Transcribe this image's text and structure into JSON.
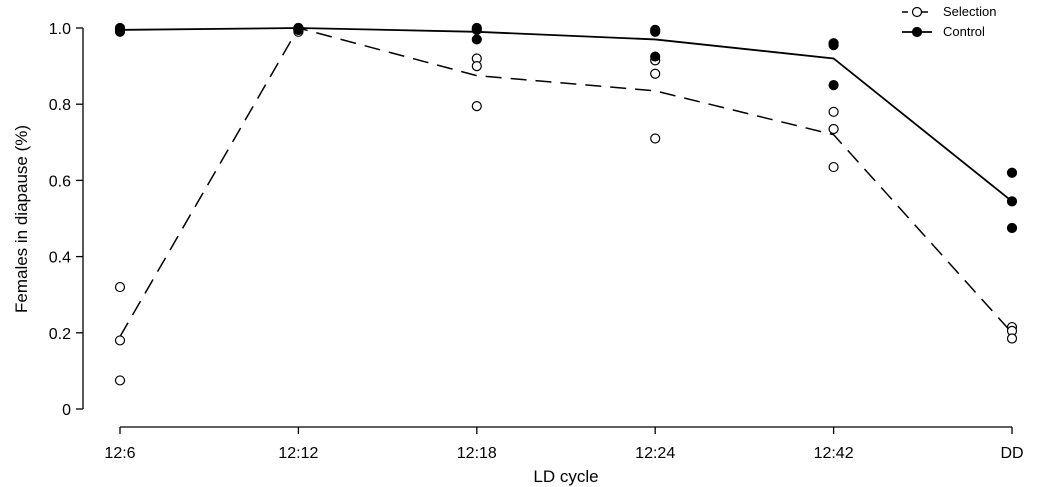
{
  "chart_data": {
    "type": "line",
    "title": "",
    "xlabel": "LD cycle",
    "ylabel": "Females in diapause (%)",
    "categories": [
      "12:6",
      "12:12",
      "12:18",
      "12:24",
      "12:42",
      "DD"
    ],
    "ylim": [
      0,
      1.0
    ],
    "yticks": [
      {
        "value": 0,
        "label": "0"
      },
      {
        "value": 0.2,
        "label": "0.2"
      },
      {
        "value": 0.4,
        "label": "0.4"
      },
      {
        "value": 0.6,
        "label": "0.6"
      },
      {
        "value": 0.8,
        "label": "0.8"
      },
      {
        "value": 1.0,
        "label": "1.0"
      }
    ],
    "grid": false,
    "legend_position": "top-right",
    "series": [
      {
        "name": "Selection",
        "line_style": "dashed",
        "marker": "open-circle",
        "color": "#000000",
        "means": [
          0.19,
          1.0,
          0.875,
          0.835,
          0.72,
          0.2
        ],
        "replicates": [
          [
            0.32,
            0.18,
            0.075
          ],
          [
            1.0,
            0.995,
            0.99
          ],
          [
            0.92,
            0.9,
            0.795
          ],
          [
            0.915,
            0.88,
            0.71
          ],
          [
            0.78,
            0.735,
            0.635
          ],
          [
            0.215,
            0.205,
            0.185
          ]
        ]
      },
      {
        "name": "Control",
        "line_style": "solid",
        "marker": "filled-circle",
        "color": "#000000",
        "means": [
          0.995,
          1.0,
          0.99,
          0.97,
          0.92,
          0.545
        ],
        "replicates": [
          [
            1.0,
            0.995,
            0.99
          ],
          [
            1.0,
            0.995,
            0.995
          ],
          [
            1.0,
            0.995,
            0.97
          ],
          [
            0.995,
            0.99,
            0.925
          ],
          [
            0.96,
            0.955,
            0.85
          ],
          [
            0.62,
            0.545,
            0.475
          ]
        ]
      }
    ]
  }
}
